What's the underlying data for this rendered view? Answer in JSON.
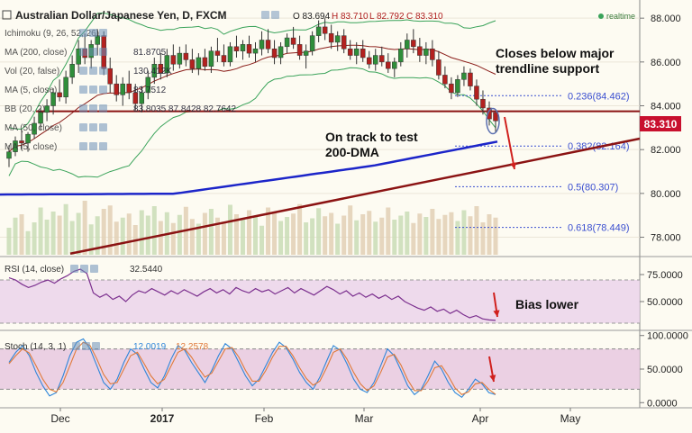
{
  "header": {
    "symbol": "Australian Dollar/Japanese Yen, D, FXCM",
    "ohlc_o": "O 83.694",
    "ohlc_h": "H 83.710",
    "ohlc_l": "L 82.792",
    "ohlc_c": "C 83.310",
    "realtime": "realtime"
  },
  "indicator_labels": [
    {
      "text": "Ichimoku (9, 26, 52, 26)",
      "value": ""
    },
    {
      "text": "MA (200, close)",
      "value": "81.8705"
    },
    {
      "text": "Vol (20, false)",
      "value": "130.412K"
    },
    {
      "text": "MA (5, close)",
      "value": "83.7512"
    },
    {
      "text": "BB (20, 2)",
      "value": "83.8035  87.8428  82.7642"
    },
    {
      "text": "MA (50, close)",
      "value": ""
    },
    {
      "text": "MA (5, close)",
      "value": ""
    }
  ],
  "rsi_label": {
    "text": "RSI (14, close)",
    "value": "32.5440"
  },
  "stoch_label": {
    "text": "Stoch (14, 3, 1)",
    "v1": "12.0019",
    "v2": "12.2578"
  },
  "annotations": {
    "trendline": "Closes below major trendline support",
    "dma": "On track to test 200-DMA",
    "bias": "Bias lower"
  },
  "price_badge": "83.310",
  "colors": {
    "background": "#fdfbf2",
    "up_candle": "#2f8e3a",
    "down_candle": "#b3211f",
    "bollinger": "#3aa35a",
    "ma200": "#1c25c9",
    "ma50": "#8b1e1a",
    "trendline": "#8b1313",
    "fib": "#3b4fd0",
    "rsi_band": "#ead2ea",
    "rsi_line": "#7b2f8e",
    "stoch_band": "#e8c8e0",
    "stoch_k": "#2f86d9",
    "stoch_d": "#e07a3a",
    "price_badge_bg": "#c8102e",
    "arrow": "#d0201d"
  },
  "chart_data": [
    {
      "type": "candlestick",
      "title": "Australian Dollar/Japanese Yen, D, FXCM",
      "x_ticks": [
        "Dec",
        "2017",
        "Feb",
        "Mar",
        "Apr",
        "May"
      ],
      "y_ticks": [
        "78.000",
        "80.000",
        "82.000",
        "84.000",
        "86.000",
        "88.000"
      ],
      "ylim": [
        77.2,
        88.5
      ],
      "last_price": 83.31,
      "candles": [
        [
          81.6,
          82.2,
          81.2,
          81.9
        ],
        [
          81.9,
          82.6,
          81.7,
          82.4
        ],
        [
          82.4,
          82.9,
          82.0,
          82.3
        ],
        [
          82.3,
          82.8,
          81.9,
          82.7
        ],
        [
          82.7,
          83.5,
          82.5,
          83.2
        ],
        [
          83.2,
          83.9,
          82.9,
          83.7
        ],
        [
          83.7,
          84.3,
          83.3,
          84.0
        ],
        [
          84.0,
          84.8,
          83.6,
          84.6
        ],
        [
          84.6,
          85.2,
          84.2,
          84.4
        ],
        [
          84.4,
          85.6,
          84.1,
          85.3
        ],
        [
          85.3,
          86.3,
          85.0,
          85.9
        ],
        [
          85.9,
          87.0,
          85.5,
          86.6
        ],
        [
          86.6,
          87.3,
          85.9,
          86.2
        ],
        [
          86.2,
          87.0,
          85.7,
          86.8
        ],
        [
          86.8,
          87.5,
          86.3,
          87.2
        ],
        [
          87.2,
          87.4,
          85.4,
          85.7
        ],
        [
          85.7,
          86.2,
          84.6,
          85.0
        ],
        [
          85.0,
          85.4,
          84.2,
          84.5
        ],
        [
          84.5,
          85.3,
          84.0,
          85.0
        ],
        [
          85.0,
          85.6,
          84.3,
          84.6
        ],
        [
          84.6,
          85.0,
          83.8,
          84.1
        ],
        [
          84.1,
          84.9,
          83.7,
          84.6
        ],
        [
          84.6,
          85.6,
          84.3,
          85.3
        ],
        [
          85.3,
          86.2,
          85.0,
          85.9
        ],
        [
          85.9,
          86.4,
          85.2,
          85.5
        ],
        [
          85.5,
          86.6,
          85.3,
          86.3
        ],
        [
          86.3,
          86.8,
          85.6,
          85.9
        ],
        [
          85.9,
          86.7,
          85.7,
          86.4
        ],
        [
          86.4,
          86.8,
          85.8,
          86.1
        ],
        [
          86.1,
          86.6,
          85.5,
          85.7
        ],
        [
          85.7,
          86.4,
          85.4,
          86.2
        ],
        [
          86.2,
          86.6,
          85.6,
          85.8
        ],
        [
          85.8,
          86.7,
          85.5,
          86.5
        ],
        [
          86.5,
          87.1,
          86.0,
          86.3
        ],
        [
          86.3,
          86.8,
          85.8,
          86.0
        ],
        [
          86.0,
          86.9,
          85.8,
          86.7
        ],
        [
          86.7,
          87.2,
          86.2,
          86.5
        ],
        [
          86.5,
          87.0,
          86.1,
          86.8
        ],
        [
          86.8,
          87.2,
          86.2,
          86.4
        ],
        [
          86.4,
          86.9,
          86.0,
          86.6
        ],
        [
          86.6,
          87.4,
          86.3,
          87.0
        ],
        [
          87.0,
          87.5,
          86.4,
          86.6
        ],
        [
          86.6,
          87.0,
          85.9,
          86.2
        ],
        [
          86.2,
          86.9,
          85.9,
          86.7
        ],
        [
          86.7,
          87.3,
          86.4,
          87.1
        ],
        [
          87.1,
          87.6,
          86.6,
          86.8
        ],
        [
          86.8,
          87.2,
          86.1,
          86.3
        ],
        [
          86.3,
          86.8,
          85.7,
          86.5
        ],
        [
          86.5,
          87.4,
          86.3,
          87.2
        ],
        [
          87.2,
          87.9,
          86.9,
          87.6
        ],
        [
          87.6,
          88.0,
          87.0,
          87.3
        ],
        [
          87.3,
          87.7,
          86.6,
          86.9
        ],
        [
          86.9,
          87.4,
          86.5,
          87.2
        ],
        [
          87.2,
          87.5,
          86.4,
          86.6
        ],
        [
          86.6,
          87.0,
          86.1,
          86.3
        ],
        [
          86.3,
          86.9,
          85.9,
          86.6
        ],
        [
          86.6,
          87.0,
          86.0,
          86.2
        ],
        [
          86.2,
          86.5,
          85.7,
          85.9
        ],
        [
          85.9,
          86.6,
          85.6,
          86.3
        ],
        [
          86.3,
          86.7,
          85.8,
          86.0
        ],
        [
          86.0,
          86.4,
          85.5,
          85.7
        ],
        [
          85.7,
          86.2,
          85.3,
          86.0
        ],
        [
          86.0,
          86.9,
          85.8,
          86.6
        ],
        [
          86.6,
          87.3,
          86.2,
          87.0
        ],
        [
          87.0,
          87.5,
          86.4,
          86.7
        ],
        [
          86.7,
          87.1,
          86.0,
          86.3
        ],
        [
          86.3,
          86.9,
          85.9,
          86.6
        ],
        [
          86.6,
          87.0,
          85.8,
          86.1
        ],
        [
          86.1,
          86.5,
          85.2,
          85.4
        ],
        [
          85.4,
          85.8,
          84.8,
          85.0
        ],
        [
          85.0,
          85.3,
          84.3,
          84.6
        ],
        [
          84.6,
          85.4,
          84.4,
          85.2
        ],
        [
          85.2,
          85.8,
          84.9,
          85.5
        ],
        [
          85.5,
          85.7,
          84.7,
          84.9
        ],
        [
          84.9,
          85.2,
          84.0,
          84.3
        ],
        [
          84.3,
          84.7,
          83.6,
          83.9
        ],
        [
          83.9,
          84.2,
          83.1,
          83.4
        ],
        [
          83.69,
          83.71,
          82.79,
          83.31
        ]
      ],
      "volume": [
        40,
        55,
        60,
        35,
        48,
        70,
        52,
        64,
        58,
        75,
        50,
        62,
        80,
        45,
        57,
        68,
        73,
        49,
        55,
        61,
        44,
        66,
        58,
        72,
        50,
        63,
        47,
        59,
        71,
        53,
        46,
        62,
        68,
        55,
        49,
        74,
        60,
        52,
        66,
        58,
        43,
        70,
        64,
        50,
        56,
        61,
        75,
        48,
        54,
        69,
        57,
        62,
        46,
        58,
        73,
        51,
        60,
        65,
        49,
        55,
        70,
        52,
        58,
        64,
        47,
        61,
        56,
        68,
        53,
        59,
        63,
        50,
        66,
        57,
        72,
        48,
        60,
        55
      ]
    },
    {
      "type": "line",
      "title": "RSI (14, close)",
      "y_ticks": [
        "50.0000",
        "75.0000"
      ],
      "ylim": [
        25,
        90
      ],
      "values": [
        72,
        70,
        66,
        63,
        65,
        68,
        70,
        67,
        71,
        74,
        78,
        80,
        76,
        58,
        54,
        57,
        52,
        55,
        50,
        56,
        60,
        58,
        62,
        59,
        56,
        60,
        57,
        61,
        58,
        55,
        59,
        62,
        58,
        61,
        57,
        63,
        60,
        58,
        62,
        59,
        61,
        57,
        60,
        63,
        58,
        62,
        59,
        56,
        60,
        64,
        61,
        57,
        60,
        55,
        58,
        54,
        57,
        53,
        56,
        52,
        55,
        50,
        47,
        44,
        42,
        45,
        41,
        43,
        39,
        42,
        38,
        35,
        37,
        34,
        33,
        32.544
      ]
    },
    {
      "type": "line",
      "title": "Stoch (14, 3, 1)",
      "y_ticks": [
        "0.0000",
        "50.0000",
        "100.0000"
      ],
      "ylim": [
        -5,
        105
      ],
      "series": [
        {
          "name": "%K",
          "values": [
            60,
            75,
            85,
            70,
            45,
            25,
            10,
            15,
            40,
            70,
            90,
            95,
            80,
            55,
            30,
            20,
            35,
            60,
            80,
            72,
            50,
            30,
            22,
            40,
            65,
            85,
            78,
            60,
            45,
            30,
            48,
            70,
            88,
            80,
            60,
            40,
            25,
            35,
            55,
            75,
            90,
            82,
            65,
            45,
            30,
            20,
            38,
            62,
            85,
            78,
            58,
            35,
            20,
            15,
            30,
            55,
            80,
            70,
            48,
            25,
            12,
            20,
            40,
            62,
            50,
            30,
            15,
            8,
            20,
            35,
            28,
            15,
            12.0019
          ]
        },
        {
          "name": "%D",
          "values": [
            58,
            70,
            80,
            74,
            55,
            35,
            20,
            16,
            30,
            55,
            80,
            90,
            85,
            65,
            42,
            28,
            30,
            50,
            70,
            75,
            58,
            40,
            28,
            35,
            55,
            75,
            80,
            68,
            52,
            38,
            44,
            62,
            80,
            82,
            68,
            48,
            32,
            32,
            48,
            68,
            84,
            84,
            70,
            52,
            36,
            26,
            32,
            52,
            75,
            80,
            65,
            45,
            28,
            18,
            25,
            45,
            68,
            72,
            56,
            34,
            18,
            18,
            32,
            52,
            55,
            40,
            22,
            12,
            16,
            28,
            30,
            20,
            12.2578
          ]
        }
      ]
    }
  ],
  "fib_levels": [
    {
      "label": "0.236(84.462)",
      "value": 84.462
    },
    {
      "label": "0.382(82.164)",
      "value": 82.164
    },
    {
      "label": "0.5(80.307)",
      "value": 80.307
    },
    {
      "label": "0.618(78.449)",
      "value": 78.449
    }
  ],
  "support_level": 83.75
}
